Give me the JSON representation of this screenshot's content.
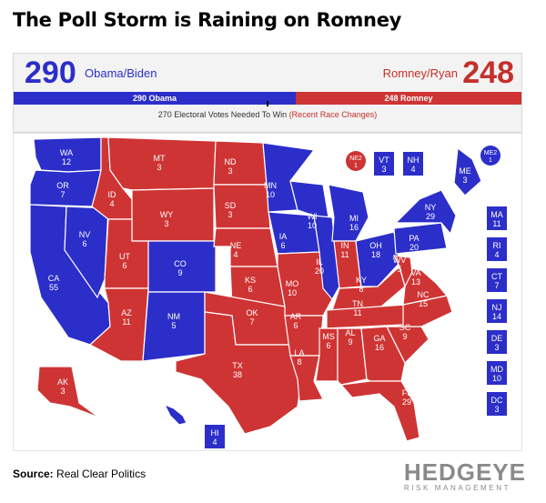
{
  "headline": "The Poll Storm is Raining on Romney",
  "tally": {
    "dem_votes": "290",
    "dem_label": "Obama/Biden",
    "rep_votes": "248",
    "rep_label": "Romney/Ryan",
    "bar_dem_label": "290 Obama",
    "bar_rep_label": "248 Romney",
    "needed_text": "270 Electoral Votes Needed To Win",
    "needed_link": "(Recent Race Changes)"
  },
  "colors": {
    "dem": "#2c2ec9",
    "rep": "#cf3434"
  },
  "states": [
    {
      "abbr": "WA",
      "ev": "12",
      "party": "dem"
    },
    {
      "abbr": "OR",
      "ev": "7",
      "party": "dem"
    },
    {
      "abbr": "CA",
      "ev": "55",
      "party": "dem"
    },
    {
      "abbr": "NV",
      "ev": "6",
      "party": "dem"
    },
    {
      "abbr": "ID",
      "ev": "4",
      "party": "rep"
    },
    {
      "abbr": "MT",
      "ev": "3",
      "party": "rep"
    },
    {
      "abbr": "WY",
      "ev": "3",
      "party": "rep"
    },
    {
      "abbr": "UT",
      "ev": "6",
      "party": "rep"
    },
    {
      "abbr": "CO",
      "ev": "9",
      "party": "dem"
    },
    {
      "abbr": "AZ",
      "ev": "11",
      "party": "rep"
    },
    {
      "abbr": "NM",
      "ev": "5",
      "party": "dem"
    },
    {
      "abbr": "ND",
      "ev": "3",
      "party": "rep"
    },
    {
      "abbr": "SD",
      "ev": "3",
      "party": "rep"
    },
    {
      "abbr": "NE",
      "ev": "4",
      "party": "rep"
    },
    {
      "abbr": "KS",
      "ev": "6",
      "party": "rep"
    },
    {
      "abbr": "OK",
      "ev": "7",
      "party": "rep"
    },
    {
      "abbr": "TX",
      "ev": "38",
      "party": "rep"
    },
    {
      "abbr": "MN",
      "ev": "10",
      "party": "dem"
    },
    {
      "abbr": "IA",
      "ev": "6",
      "party": "dem"
    },
    {
      "abbr": "MO",
      "ev": "10",
      "party": "rep"
    },
    {
      "abbr": "AR",
      "ev": "6",
      "party": "rep"
    },
    {
      "abbr": "LA",
      "ev": "8",
      "party": "rep"
    },
    {
      "abbr": "WI",
      "ev": "10",
      "party": "dem"
    },
    {
      "abbr": "IL",
      "ev": "20",
      "party": "dem"
    },
    {
      "abbr": "MI",
      "ev": "16",
      "party": "dem"
    },
    {
      "abbr": "IN",
      "ev": "11",
      "party": "rep"
    },
    {
      "abbr": "OH",
      "ev": "18",
      "party": "dem"
    },
    {
      "abbr": "KY",
      "ev": "8",
      "party": "rep"
    },
    {
      "abbr": "TN",
      "ev": "11",
      "party": "rep"
    },
    {
      "abbr": "MS",
      "ev": "6",
      "party": "rep"
    },
    {
      "abbr": "AL",
      "ev": "9",
      "party": "rep"
    },
    {
      "abbr": "GA",
      "ev": "16",
      "party": "rep"
    },
    {
      "abbr": "FL",
      "ev": "29",
      "party": "rep"
    },
    {
      "abbr": "SC",
      "ev": "9",
      "party": "rep"
    },
    {
      "abbr": "NC",
      "ev": "15",
      "party": "rep"
    },
    {
      "abbr": "VA",
      "ev": "13",
      "party": "rep"
    },
    {
      "abbr": "WV",
      "ev": "5",
      "party": "rep"
    },
    {
      "abbr": "PA",
      "ev": "20",
      "party": "dem"
    },
    {
      "abbr": "NY",
      "ev": "29",
      "party": "dem"
    },
    {
      "abbr": "ME",
      "ev": "3",
      "party": "dem"
    },
    {
      "abbr": "AK",
      "ev": "3",
      "party": "rep"
    },
    {
      "abbr": "HI",
      "ev": "4",
      "party": "dem"
    }
  ],
  "small_states": [
    {
      "abbr": "VT",
      "ev": "3",
      "party": "dem"
    },
    {
      "abbr": "NH",
      "ev": "4",
      "party": "dem"
    },
    {
      "abbr": "MA",
      "ev": "11",
      "party": "dem"
    },
    {
      "abbr": "RI",
      "ev": "4",
      "party": "dem"
    },
    {
      "abbr": "CT",
      "ev": "7",
      "party": "dem"
    },
    {
      "abbr": "NJ",
      "ev": "14",
      "party": "dem"
    },
    {
      "abbr": "DE",
      "ev": "3",
      "party": "dem"
    },
    {
      "abbr": "MD",
      "ev": "10",
      "party": "dem"
    },
    {
      "abbr": "DC",
      "ev": "3",
      "party": "dem"
    }
  ],
  "districts": [
    {
      "abbr": "NE2",
      "ev": "1",
      "party": "rep"
    },
    {
      "abbr": "ME2",
      "ev": "1",
      "party": "dem"
    }
  ],
  "source_label": "Source:",
  "source_text": "Real Clear Politics",
  "logo_word": "HEDGEYE",
  "logo_sub": "RISK MANAGEMENT"
}
